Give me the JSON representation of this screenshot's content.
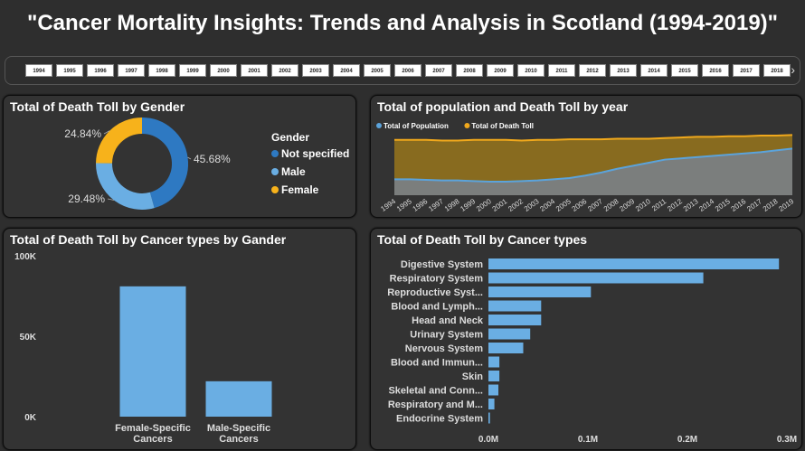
{
  "page": {
    "title": "\"Cancer Mortality Insights: Trends and Analysis in Scotland (1994-2019)\""
  },
  "slicer": {
    "years": [
      "1994",
      "1995",
      "1996",
      "1997",
      "1998",
      "1999",
      "2000",
      "2001",
      "2002",
      "2003",
      "2004",
      "2005",
      "2006",
      "2007",
      "2008",
      "2009",
      "2010",
      "2011",
      "2012",
      "2013",
      "2014",
      "2015",
      "2016",
      "2017",
      "2018"
    ],
    "next_glyph": "›"
  },
  "colors": {
    "dark_blue": "#2e79c2",
    "light_blue": "#6aaee3",
    "yellow": "#f7b21b",
    "area_gold": "#8d6f1f"
  },
  "chart_data": [
    {
      "type": "pie",
      "title": "Total of Death Toll by Gender",
      "legend_title": "Gender",
      "legend_position": "right",
      "slices": [
        {
          "name": "Not specified",
          "value": 45.68,
          "label": "45.68%",
          "color": "#2e79c2"
        },
        {
          "name": "Male",
          "value": 29.48,
          "label": "29.48%",
          "color": "#6aaee3"
        },
        {
          "name": "Female",
          "value": 24.84,
          "label": "24.84%",
          "color": "#f7b21b"
        }
      ]
    },
    {
      "type": "area",
      "title": "Total of population and Death Toll by year",
      "legend_position": "top-left",
      "x": [
        "1994",
        "1995",
        "1996",
        "1997",
        "1998",
        "1999",
        "2000",
        "2001",
        "2002",
        "2003",
        "2004",
        "2005",
        "2006",
        "2007",
        "2008",
        "2009",
        "2010",
        "2011",
        "2012",
        "2013",
        "2014",
        "2015",
        "2016",
        "2017",
        "2018",
        "2019"
      ],
      "series": [
        {
          "name": "Total of Population",
          "color": "#5ba3db",
          "values": [
            26,
            26,
            25,
            24,
            24,
            23,
            22,
            22,
            23,
            24,
            26,
            28,
            32,
            37,
            43,
            48,
            53,
            58,
            60,
            62,
            64,
            66,
            68,
            70,
            73,
            76
          ]
        },
        {
          "name": "Total of Death Toll",
          "color": "#f0a81c",
          "values": [
            90,
            90,
            90,
            89,
            89,
            90,
            90,
            90,
            89,
            90,
            90,
            91,
            91,
            91,
            92,
            92,
            92,
            93,
            94,
            95,
            95,
            96,
            96,
            97,
            97,
            98
          ]
        }
      ]
    },
    {
      "type": "bar",
      "title": "Total of Death Toll by Cancer types by Gander",
      "categories": [
        "Female-Specific Cancers",
        "Male-Specific Cancers"
      ],
      "category_lines": [
        [
          "Female-Specific",
          "Cancers"
        ],
        [
          "Male-Specific",
          "Cancers"
        ]
      ],
      "values": [
        81000,
        22000
      ],
      "color": "#6aaee3",
      "ylim": [
        0,
        100000
      ],
      "yticks": [
        {
          "v": 0,
          "label": "0K"
        },
        {
          "v": 50000,
          "label": "50K"
        },
        {
          "v": 100000,
          "label": "100K"
        }
      ]
    },
    {
      "type": "bar",
      "orientation": "horizontal",
      "title": "Total of Death Toll by Cancer types",
      "categories": [
        "Digestive System",
        "Respiratory System",
        "Reproductive Syst...",
        "Blood and Lymph...",
        "Head and Neck",
        "Urinary System",
        "Nervous System",
        "Blood and Immun...",
        "Skin",
        "Skeletal and Conn...",
        "Respiratory and M...",
        "Endocrine System"
      ],
      "values": [
        292000,
        216000,
        103000,
        53000,
        53000,
        42000,
        35000,
        11000,
        11000,
        10000,
        6000,
        1500
      ],
      "color": "#6aaee3",
      "xlim": [
        0,
        300000
      ],
      "xticks": [
        {
          "v": 0,
          "label": "0.0M"
        },
        {
          "v": 100000,
          "label": "0.1M"
        },
        {
          "v": 200000,
          "label": "0.2M"
        },
        {
          "v": 300000,
          "label": "0.3M"
        }
      ]
    }
  ]
}
